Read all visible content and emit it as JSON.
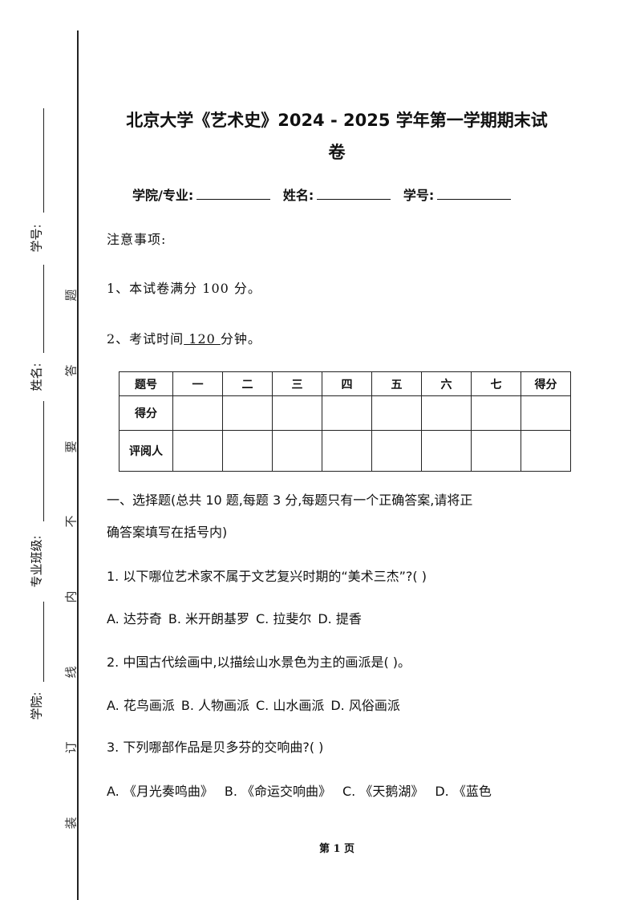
{
  "margin": {
    "fields": [
      "学号:",
      "姓名:",
      "专业班级:",
      "学院:"
    ],
    "seal_text": [
      "题",
      "答",
      "要",
      "不",
      "内",
      "线",
      "订",
      "装"
    ]
  },
  "title": {
    "line1": "北京大学《艺术史》2024 - 2025 学年第一学期期末试",
    "line2": "卷"
  },
  "info": {
    "college_label": "学院/专业:",
    "name_label": "姓名:",
    "id_label": "学号:"
  },
  "notes": {
    "heading": "注意事项:",
    "item1": "1、本试卷满分 100 分。",
    "item2_prefix": "2、考试时间",
    "item2_value": " 120 ",
    "item2_suffix": "分钟。"
  },
  "score_table": {
    "headers": [
      "题号",
      "一",
      "二",
      "三",
      "四",
      "五",
      "六",
      "七",
      "得分"
    ],
    "row_labels": [
      "得分",
      "评阅人"
    ]
  },
  "section1": {
    "heading_line1": "一、选择题(总共 10 题,每题 3 分,每题只有一个正确答案,请将正",
    "heading_line2": "确答案填写在括号内)"
  },
  "questions": [
    {
      "stem": "1. 以下哪位艺术家不属于文艺复兴时期的“美术三杰”?(   )",
      "options": [
        "A. 达芬奇",
        "B. 米开朗基罗",
        "C. 拉斐尔",
        "D. 提香"
      ]
    },
    {
      "stem": "2. 中国古代绘画中,以描绘山水景色为主的画派是(   )。",
      "options": [
        "A. 花鸟画派",
        "B. 人物画派",
        "C. 山水画派",
        "D. 风俗画派"
      ]
    },
    {
      "stem": "3. 下列哪部作品是贝多芬的交响曲?(   )",
      "options": [
        "A. 《月光奏鸣曲》",
        "B. 《命运交响曲》",
        "C. 《天鹅湖》",
        "D. 《蓝色"
      ]
    }
  ],
  "footer": {
    "page": "第 1 页"
  }
}
